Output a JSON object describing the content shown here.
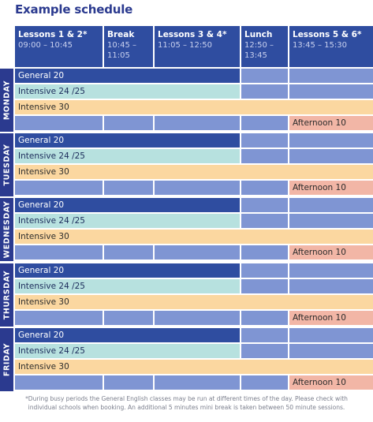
{
  "title": "Example schedule",
  "header": {
    "lessons12_label": "Lessons 1 & 2*",
    "lessons12_time": "09:00 – 10:45",
    "break_label": "Break",
    "break_time": "10:45 –\n11:05",
    "lessons34_label": "Lessons 3 & 4*",
    "lessons34_time": "11:05 – 12:50",
    "lunch_label": "Lunch",
    "lunch_time": "12:50 –\n13:45",
    "lessons56_label": "Lessons 5 & 6*",
    "lessons56_time": "13:45 – 15:30"
  },
  "days": [
    {
      "name": "MONDAY",
      "general": "General 20",
      "intensive24": "Intensive 24 /25",
      "intensive30": "Intensive 30",
      "afternoon": "Afternoon 10"
    },
    {
      "name": "TUESDAY",
      "general": "General 20",
      "intensive24": "Intensive 24 /25",
      "intensive30": "Intensive 30",
      "afternoon": "Afternoon 10"
    },
    {
      "name": "WEDNESDAY",
      "general": "General 20",
      "intensive24": "Intensive  24 /25",
      "intensive30": "Intensive 30",
      "afternoon": "Afternoon 10"
    },
    {
      "name": "THURSDAY",
      "general": "General 20",
      "intensive24": "Intensive  24 /25",
      "intensive30": "Intensive 30",
      "afternoon": "Afternoon 10"
    },
    {
      "name": "FRIDAY",
      "general": "General 20",
      "intensive24": "Intensive 24 /25",
      "intensive30": "Intensive 30",
      "afternoon": "Afternoon 10"
    }
  ],
  "footnote_line1": "*During busy periods the General English classes may be run at different times of the day. Please check with",
  "footnote_line2": "individual schools when booking. An additional 5 minutes mini break is taken between 50 minute sessions.",
  "colors": {
    "header": "#2f4da0",
    "day_tab": "#2b3a8f",
    "grid_cell": "#7f95d3",
    "general": "#2f4da0",
    "intensive24": "#b7e1df",
    "intensive30": "#fbd7a0",
    "afternoon": "#f2b6a6"
  }
}
